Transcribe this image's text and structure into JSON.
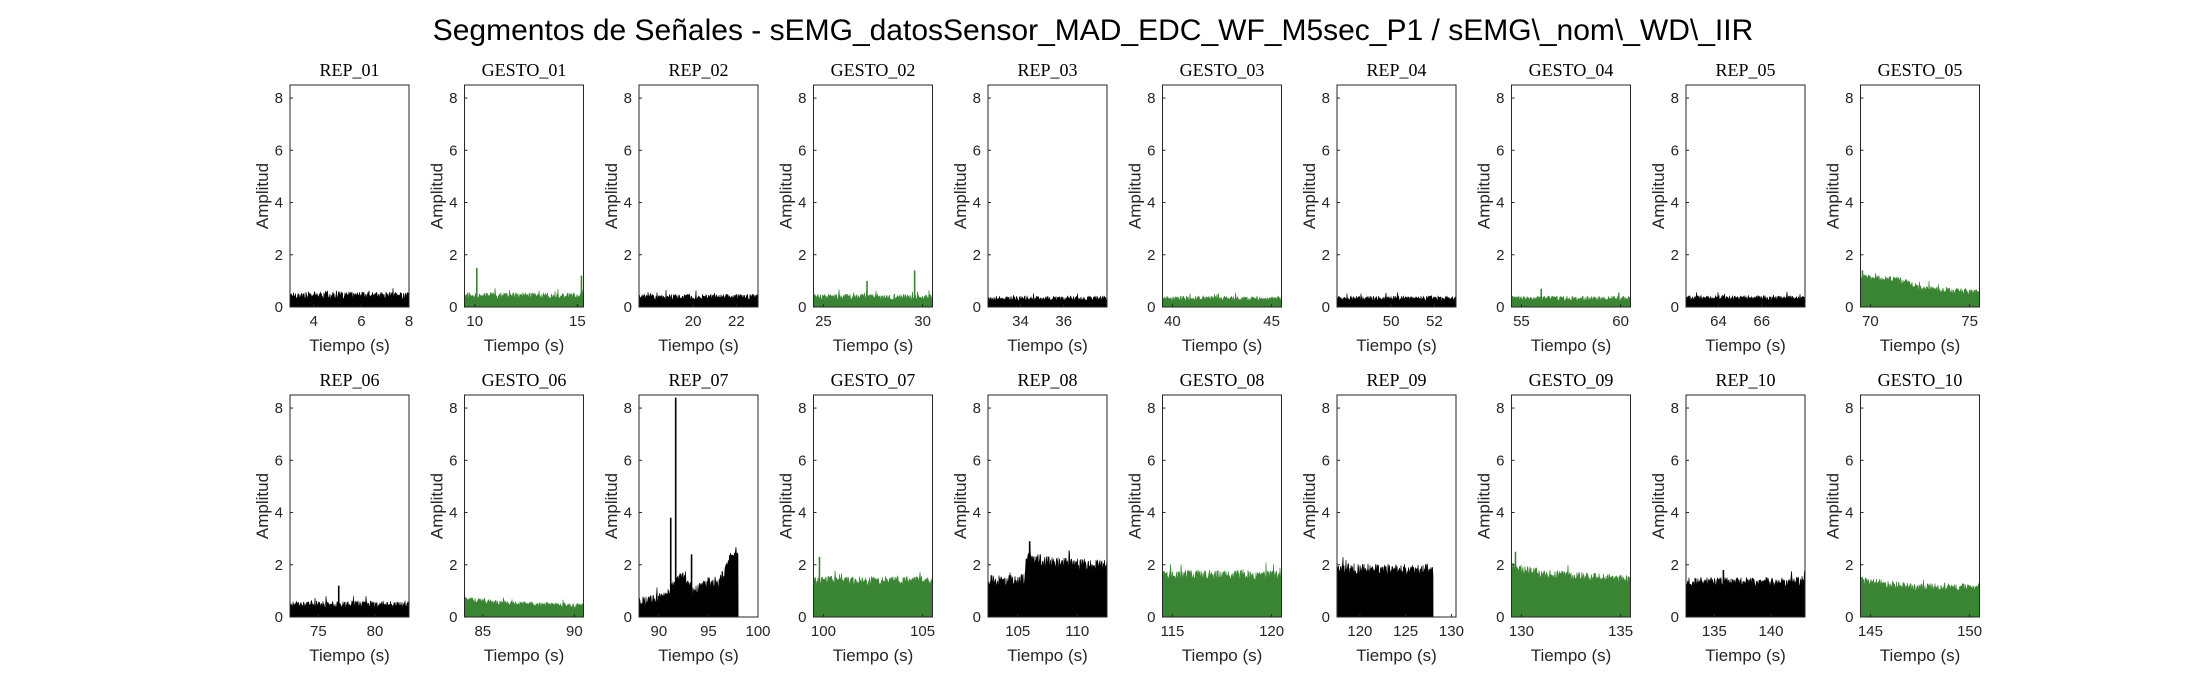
{
  "figure": {
    "title": "Segmentos de Señales - sEMG_datosSensor_MAD_EDC_WF_M5sec_P1 / sEMG\\_nom\\_WD\\_IIR"
  },
  "colors": {
    "rep": "#000000",
    "gesto": "#3a8533",
    "axis": "#262626"
  },
  "chart_data": [
    {
      "type": "area",
      "title": "REP_01",
      "xlabel": "Tiempo (s)",
      "ylabel": "Amplitud",
      "xlim": [
        3,
        8
      ],
      "ylim": [
        0,
        8.5
      ],
      "xticks": [
        4,
        6,
        8
      ],
      "yticks": [
        0,
        2,
        4,
        6,
        8
      ],
      "data_range": [
        3,
        8
      ],
      "color": "#000000",
      "base": 0.4,
      "spread": 0.18,
      "peaks": []
    },
    {
      "type": "area",
      "title": "GESTO_01",
      "xlabel": "Tiempo (s)",
      "ylabel": "Amplitud",
      "xlim": [
        9.5,
        15.3
      ],
      "ylim": [
        0,
        8.5
      ],
      "xticks": [
        10,
        15
      ],
      "yticks": [
        0,
        2,
        4,
        6,
        8
      ],
      "data_range": [
        9.5,
        15.3
      ],
      "color": "#3a8533",
      "base": 0.4,
      "spread": 0.15,
      "peaks": [
        [
          10.1,
          1.5
        ],
        [
          15.2,
          1.2
        ]
      ]
    },
    {
      "type": "area",
      "title": "REP_02",
      "xlabel": "Tiempo (s)",
      "ylabel": "Amplitud",
      "xlim": [
        17.5,
        23
      ],
      "ylim": [
        0,
        8.5
      ],
      "xticks": [
        20,
        22
      ],
      "yticks": [
        0,
        2,
        4,
        6,
        8
      ],
      "data_range": [
        17.5,
        23
      ],
      "color": "#000000",
      "base": 0.35,
      "spread": 0.14,
      "peaks": []
    },
    {
      "type": "area",
      "title": "GESTO_02",
      "xlabel": "Tiempo (s)",
      "ylabel": "Amplitud",
      "xlim": [
        24.5,
        30.5
      ],
      "ylim": [
        0,
        8.5
      ],
      "xticks": [
        25,
        30
      ],
      "yticks": [
        0,
        2,
        4,
        6,
        8
      ],
      "data_range": [
        24.5,
        30.5
      ],
      "color": "#3a8533",
      "base": 0.35,
      "spread": 0.15,
      "peaks": [
        [
          27.2,
          1.0
        ],
        [
          29.6,
          1.4
        ]
      ]
    },
    {
      "type": "area",
      "title": "REP_03",
      "xlabel": "Tiempo (s)",
      "ylabel": "Amplitud",
      "xlim": [
        32.5,
        38
      ],
      "ylim": [
        0,
        8.5
      ],
      "xticks": [
        34,
        36
      ],
      "yticks": [
        0,
        2,
        4,
        6,
        8
      ],
      "data_range": [
        32.5,
        38
      ],
      "color": "#000000",
      "base": 0.3,
      "spread": 0.12,
      "peaks": []
    },
    {
      "type": "area",
      "title": "GESTO_03",
      "xlabel": "Tiempo (s)",
      "ylabel": "Amplitud",
      "xlim": [
        39.5,
        45.5
      ],
      "ylim": [
        0,
        8.5
      ],
      "xticks": [
        40,
        45
      ],
      "yticks": [
        0,
        2,
        4,
        6,
        8
      ],
      "data_range": [
        39.5,
        45.5
      ],
      "color": "#3a8533",
      "base": 0.3,
      "spread": 0.12,
      "peaks": []
    },
    {
      "type": "area",
      "title": "REP_04",
      "xlabel": "Tiempo (s)",
      "ylabel": "Amplitud",
      "xlim": [
        47.5,
        53
      ],
      "ylim": [
        0,
        8.5
      ],
      "xticks": [
        50,
        52
      ],
      "yticks": [
        0,
        2,
        4,
        6,
        8
      ],
      "data_range": [
        47.5,
        53
      ],
      "color": "#000000",
      "base": 0.3,
      "spread": 0.12,
      "peaks": []
    },
    {
      "type": "area",
      "title": "GESTO_04",
      "xlabel": "Tiempo (s)",
      "ylabel": "Amplitud",
      "xlim": [
        54.5,
        60.5
      ],
      "ylim": [
        0,
        8.5
      ],
      "xticks": [
        55,
        60
      ],
      "yticks": [
        0,
        2,
        4,
        6,
        8
      ],
      "data_range": [
        54.5,
        60.5
      ],
      "color": "#3a8533",
      "base": 0.3,
      "spread": 0.12,
      "peaks": [
        [
          56,
          0.7
        ]
      ]
    },
    {
      "type": "area",
      "title": "REP_05",
      "xlabel": "Tiempo (s)",
      "ylabel": "Amplitud",
      "xlim": [
        62.5,
        68
      ],
      "ylim": [
        0,
        8.5
      ],
      "xticks": [
        64,
        66
      ],
      "yticks": [
        0,
        2,
        4,
        6,
        8
      ],
      "data_range": [
        62.5,
        68
      ],
      "color": "#000000",
      "base": 0.32,
      "spread": 0.12,
      "peaks": []
    },
    {
      "type": "area",
      "title": "GESTO_05",
      "xlabel": "Tiempo (s)",
      "ylabel": "Amplitud",
      "xlim": [
        69.5,
        75.5
      ],
      "ylim": [
        0,
        8.5
      ],
      "xticks": [
        70,
        75
      ],
      "yticks": [
        0,
        2,
        4,
        6,
        8
      ],
      "data_range": [
        69.5,
        75.5
      ],
      "color": "#3a8533",
      "profile": [
        [
          69.5,
          1.1
        ],
        [
          71.5,
          1.0
        ],
        [
          72.5,
          0.7
        ],
        [
          75.5,
          0.5
        ]
      ],
      "spread": 0.15,
      "peaks": [
        [
          69.6,
          1.4
        ]
      ]
    },
    {
      "type": "area",
      "title": "REP_06",
      "xlabel": "Tiempo (s)",
      "ylabel": "Amplitud",
      "xlim": [
        72.5,
        83
      ],
      "ylim": [
        0,
        8.5
      ],
      "xticks": [
        75,
        80
      ],
      "yticks": [
        0,
        2,
        4,
        6,
        8
      ],
      "data_range": [
        72.5,
        83
      ],
      "color": "#000000",
      "base": 0.45,
      "spread": 0.18,
      "peaks": [
        [
          76.8,
          1.2
        ]
      ]
    },
    {
      "type": "area",
      "title": "GESTO_06",
      "xlabel": "Tiempo (s)",
      "ylabel": "Amplitud",
      "xlim": [
        84,
        90.5
      ],
      "ylim": [
        0,
        8.5
      ],
      "xticks": [
        85,
        90
      ],
      "yticks": [
        0,
        2,
        4,
        6,
        8
      ],
      "data_range": [
        84,
        90.5
      ],
      "color": "#3a8533",
      "profile": [
        [
          84,
          0.65
        ],
        [
          86,
          0.5
        ],
        [
          90.5,
          0.4
        ]
      ],
      "spread": 0.12,
      "peaks": []
    },
    {
      "type": "area",
      "title": "REP_07",
      "xlabel": "Tiempo (s)",
      "ylabel": "Amplitud",
      "xlim": [
        88,
        100
      ],
      "ylim": [
        0,
        8.5
      ],
      "xticks": [
        90,
        95,
        100
      ],
      "yticks": [
        0,
        2,
        4,
        6,
        8
      ],
      "data_range": [
        88,
        98
      ],
      "color": "#000000",
      "profile": [
        [
          88,
          0.5
        ],
        [
          90.5,
          0.7
        ],
        [
          91.2,
          1.0
        ],
        [
          92.2,
          1.6
        ],
        [
          93.5,
          0.9
        ],
        [
          95,
          1.3
        ],
        [
          96,
          1.2
        ],
        [
          96.8,
          1.8
        ],
        [
          97.3,
          2.3
        ],
        [
          98,
          2.5
        ]
      ],
      "spread": 0.25,
      "peaks": [
        [
          91.2,
          3.8
        ],
        [
          91.7,
          8.4
        ],
        [
          93.3,
          2.4
        ]
      ]
    },
    {
      "type": "area",
      "title": "GESTO_07",
      "xlabel": "Tiempo (s)",
      "ylabel": "Amplitud",
      "xlim": [
        99.5,
        105.5
      ],
      "ylim": [
        0,
        8.5
      ],
      "xticks": [
        100,
        105
      ],
      "yticks": [
        0,
        2,
        4,
        6,
        8
      ],
      "data_range": [
        99.5,
        105.5
      ],
      "color": "#3a8533",
      "base": 1.35,
      "spread": 0.22,
      "peaks": [
        [
          99.8,
          2.3
        ]
      ]
    },
    {
      "type": "area",
      "title": "REP_08",
      "xlabel": "Tiempo (s)",
      "ylabel": "Amplitud",
      "xlim": [
        102.5,
        112.5
      ],
      "ylim": [
        0,
        8.5
      ],
      "xticks": [
        105,
        110
      ],
      "yticks": [
        0,
        2,
        4,
        6,
        8
      ],
      "data_range": [
        102.5,
        112.5
      ],
      "color": "#000000",
      "profile": [
        [
          102.5,
          1.35
        ],
        [
          105.5,
          1.35
        ],
        [
          105.8,
          2.2
        ],
        [
          108,
          2.0
        ],
        [
          112.5,
          1.9
        ]
      ],
      "spread": 0.3,
      "peaks": [
        [
          106,
          2.9
        ]
      ]
    },
    {
      "type": "area",
      "title": "GESTO_08",
      "xlabel": "Tiempo (s)",
      "ylabel": "Amplitud",
      "xlim": [
        114.5,
        120.5
      ],
      "ylim": [
        0,
        8.5
      ],
      "xticks": [
        115,
        120
      ],
      "yticks": [
        0,
        2,
        4,
        6,
        8
      ],
      "data_range": [
        114.5,
        120.5
      ],
      "color": "#3a8533",
      "base": 1.55,
      "spread": 0.25,
      "peaks": []
    },
    {
      "type": "area",
      "title": "REP_09",
      "xlabel": "Tiempo (s)",
      "ylabel": "Amplitud",
      "xlim": [
        117.5,
        130.5
      ],
      "ylim": [
        0,
        8.5
      ],
      "xticks": [
        120,
        125,
        130
      ],
      "yticks": [
        0,
        2,
        4,
        6,
        8
      ],
      "data_range": [
        117.5,
        128
      ],
      "color": "#000000",
      "base": 1.75,
      "spread": 0.3,
      "peaks": []
    },
    {
      "type": "area",
      "title": "GESTO_09",
      "xlabel": "Tiempo (s)",
      "ylabel": "Amplitud",
      "xlim": [
        129.5,
        135.5
      ],
      "ylim": [
        0,
        8.5
      ],
      "xticks": [
        130,
        135
      ],
      "yticks": [
        0,
        2,
        4,
        6,
        8
      ],
      "data_range": [
        129.5,
        135.5
      ],
      "color": "#3a8533",
      "profile": [
        [
          129.5,
          1.9
        ],
        [
          131,
          1.6
        ],
        [
          135.5,
          1.4
        ]
      ],
      "spread": 0.22,
      "peaks": [
        [
          129.7,
          2.5
        ]
      ]
    },
    {
      "type": "area",
      "title": "REP_10",
      "xlabel": "Tiempo (s)",
      "ylabel": "Amplitud",
      "xlim": [
        132.5,
        143
      ],
      "ylim": [
        0,
        8.5
      ],
      "xticks": [
        135,
        140
      ],
      "yticks": [
        0,
        2,
        4,
        6,
        8
      ],
      "data_range": [
        132.5,
        143
      ],
      "color": "#000000",
      "base": 1.3,
      "spread": 0.22,
      "peaks": [
        [
          135.8,
          1.8
        ]
      ]
    },
    {
      "type": "area",
      "title": "GESTO_10",
      "xlabel": "Tiempo (s)",
      "ylabel": "Amplitud",
      "xlim": [
        144.5,
        150.5
      ],
      "ylim": [
        0,
        8.5
      ],
      "xticks": [
        145,
        150
      ],
      "yticks": [
        0,
        2,
        4,
        6,
        8
      ],
      "data_range": [
        144.5,
        150.5
      ],
      "color": "#3a8533",
      "profile": [
        [
          144.5,
          1.35
        ],
        [
          147,
          1.1
        ],
        [
          150.5,
          1.1
        ]
      ],
      "spread": 0.2,
      "peaks": []
    }
  ]
}
